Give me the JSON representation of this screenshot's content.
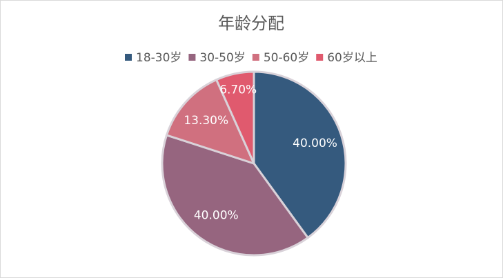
{
  "chart_data": {
    "type": "pie",
    "title": "年龄分配",
    "categories": [
      "18-30岁",
      "30-50岁",
      "50-60岁",
      "60岁以上"
    ],
    "values": [
      40,
      40,
      13.3,
      6.7
    ],
    "value_labels": [
      "40.00%",
      "40.00%",
      "13.30%",
      "6.70%"
    ],
    "colors": [
      "#355a7e",
      "#96657f",
      "#d0707f",
      "#e05a6e"
    ],
    "legend": "top"
  }
}
